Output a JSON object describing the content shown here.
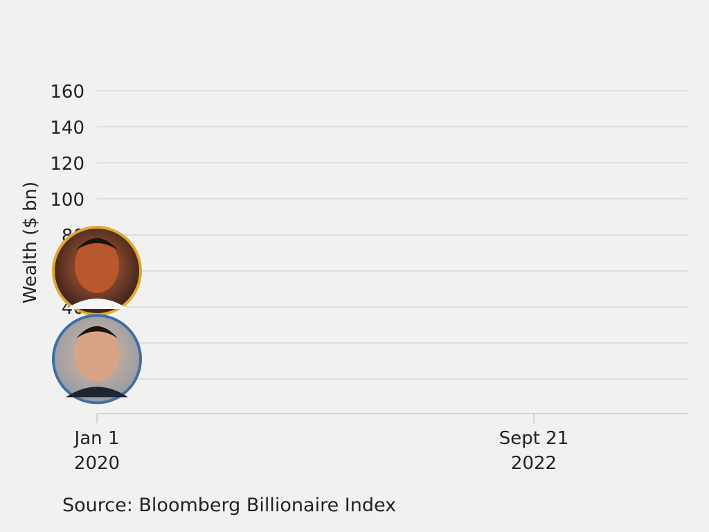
{
  "chart_data": {
    "type": "line",
    "title": "",
    "xlabel": "",
    "ylabel": "Wealth ($ bn)",
    "ylim": [
      0,
      160
    ],
    "yticks": [
      0,
      20,
      40,
      60,
      80,
      100,
      120,
      140,
      160
    ],
    "xlim": [
      "2020-01-01",
      "2023-06-01"
    ],
    "xticks": [
      {
        "date": "2020-01-01",
        "label": [
          "Jan 1",
          "2020"
        ]
      },
      {
        "date": "2022-09-21",
        "label": [
          "Sept 21",
          "2022"
        ]
      }
    ],
    "grid": true,
    "series": [
      {
        "marker": "portrait",
        "color": "#e0a82e",
        "points": [
          {
            "x": "2020-01-01",
            "y": 60
          }
        ]
      },
      {
        "marker": "portrait",
        "color": "#3f6fa3",
        "points": [
          {
            "x": "2020-01-01",
            "y": 11
          }
        ]
      }
    ],
    "source": "Source: Bloomberg Billionaire Index"
  }
}
